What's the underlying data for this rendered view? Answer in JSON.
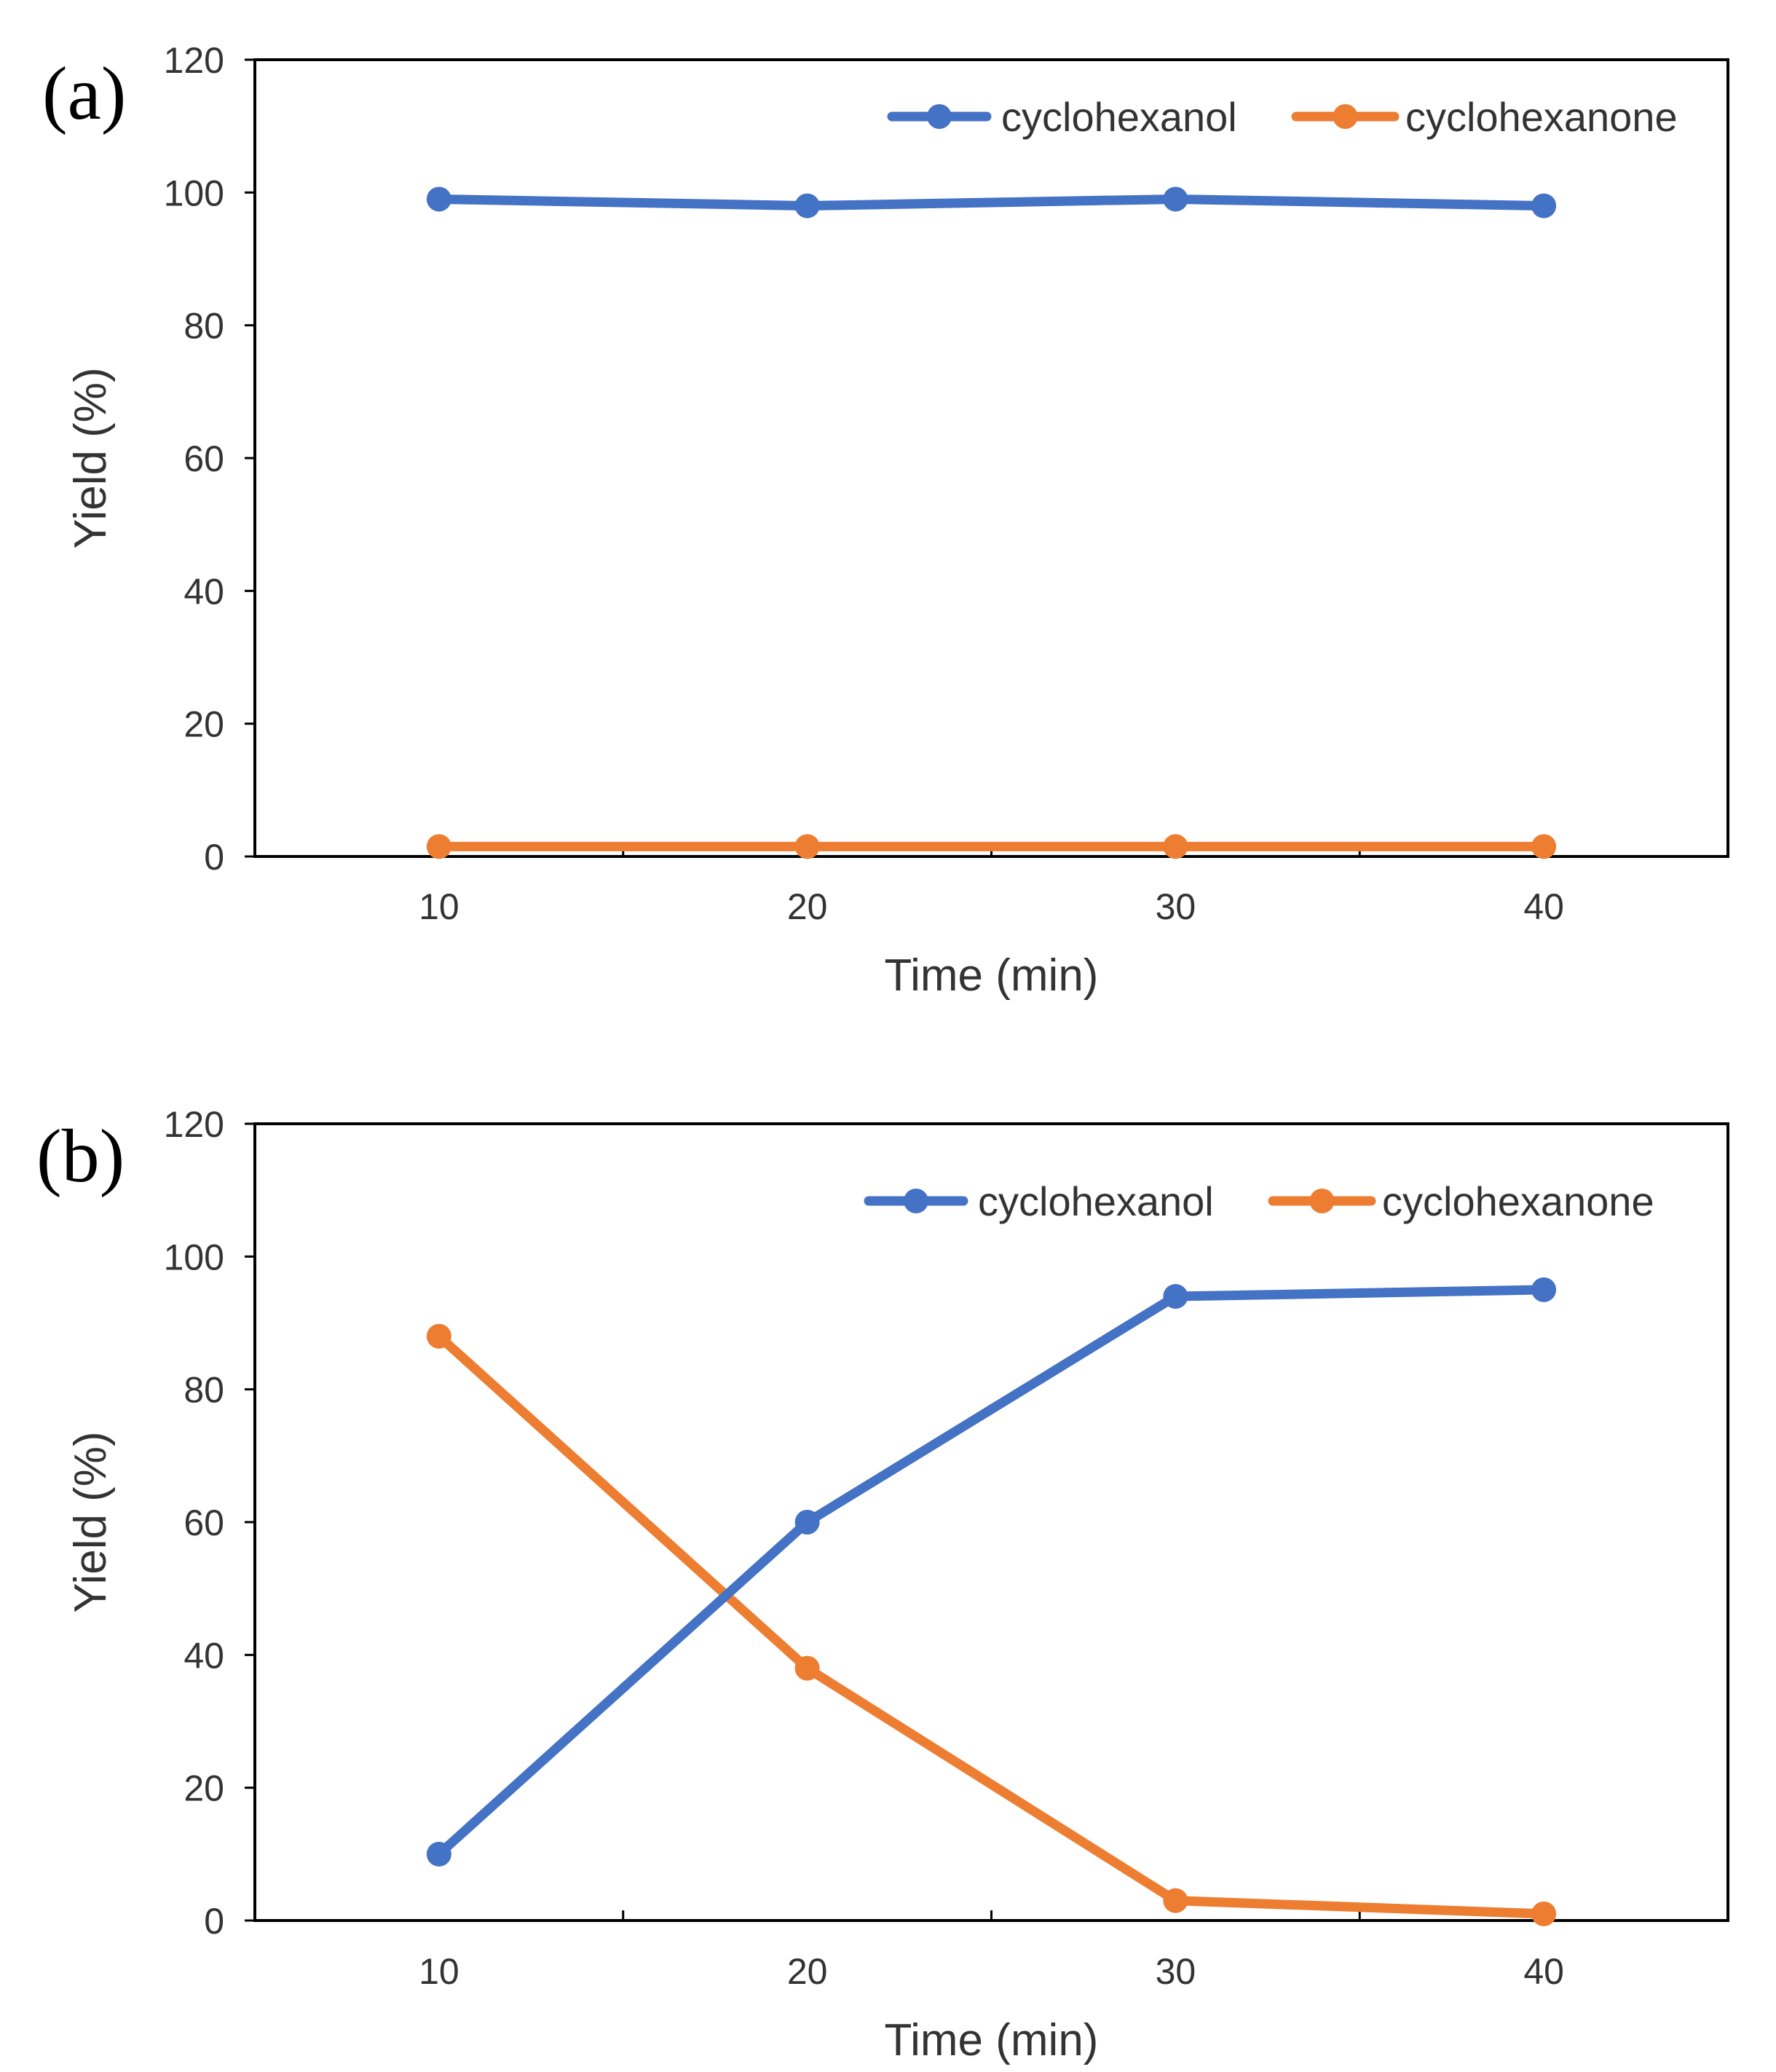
{
  "chart_data": [
    {
      "type": "line",
      "panel_label": "(a)",
      "title": "",
      "xlabel": "Time (min)",
      "ylabel": "Yield (%)",
      "x": [
        10,
        20,
        30,
        40
      ],
      "x_tick_labels": [
        "10",
        "20",
        "30",
        "40"
      ],
      "xlim": [
        5,
        45
      ],
      "ylim": [
        0,
        120
      ],
      "y_ticks": [
        0,
        20,
        40,
        60,
        80,
        100,
        120
      ],
      "y_tick_labels": [
        "0",
        "20",
        "40",
        "60",
        "80",
        "100",
        "120"
      ],
      "grid": false,
      "legend_position": "top-right",
      "series": [
        {
          "name": "cyclohexanol",
          "color": "#4472C4",
          "values": [
            99,
            98,
            99,
            98
          ]
        },
        {
          "name": "cyclohexanone",
          "color": "#ED7D31",
          "values": [
            1.5,
            1.5,
            1.5,
            1.5
          ]
        }
      ]
    },
    {
      "type": "line",
      "panel_label": "(b)",
      "title": "",
      "xlabel": "Time (min)",
      "ylabel": "Yield (%)",
      "x": [
        10,
        20,
        30,
        40
      ],
      "x_tick_labels": [
        "10",
        "20",
        "30",
        "40"
      ],
      "xlim": [
        5,
        45
      ],
      "ylim": [
        0,
        120
      ],
      "y_ticks": [
        0,
        20,
        40,
        60,
        80,
        100,
        120
      ],
      "y_tick_labels": [
        "0",
        "20",
        "40",
        "60",
        "80",
        "100",
        "120"
      ],
      "grid": false,
      "legend_position": "top-right",
      "series": [
        {
          "name": "cyclohexanol",
          "color": "#4472C4",
          "values": [
            10,
            60,
            94,
            95
          ]
        },
        {
          "name": "cyclohexanone",
          "color": "#ED7D31",
          "values": [
            88,
            38,
            3,
            1
          ]
        }
      ]
    }
  ]
}
